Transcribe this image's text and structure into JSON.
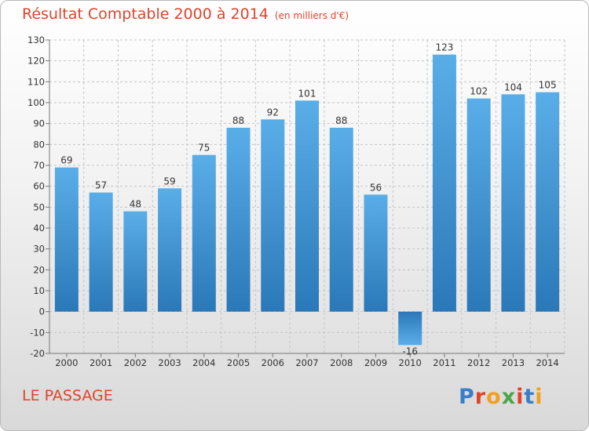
{
  "header": {
    "title": "Résultat Comptable 2000 à 2014",
    "subtitle": "(en milliers d'€)"
  },
  "footer": {
    "place": "LE PASSAGE"
  },
  "logo": {
    "text": "Proxiti",
    "letter_colors": [
      "#3a7ec8",
      "#e0432b",
      "#f0a020",
      "#4aa64a",
      "#e0432b",
      "#3a7ec8",
      "#f0a020"
    ]
  },
  "chart_data": {
    "type": "bar",
    "title": "Résultat Comptable 2000 à 2014",
    "xlabel": "",
    "ylabel": "",
    "categories": [
      "2000",
      "2001",
      "2002",
      "2003",
      "2004",
      "2005",
      "2006",
      "2007",
      "2008",
      "2009",
      "2010",
      "2011",
      "2012",
      "2013",
      "2014"
    ],
    "values": [
      69,
      57,
      48,
      59,
      75,
      88,
      92,
      101,
      88,
      56,
      -16,
      123,
      102,
      104,
      105
    ],
    "ylim": [
      -20,
      130
    ],
    "yticks": [
      -20,
      -10,
      0,
      10,
      20,
      30,
      40,
      50,
      60,
      70,
      80,
      90,
      100,
      110,
      120,
      130
    ],
    "grid": true,
    "bar_color_light": "#5aaee8",
    "bar_color_dark": "#2a78b8"
  }
}
